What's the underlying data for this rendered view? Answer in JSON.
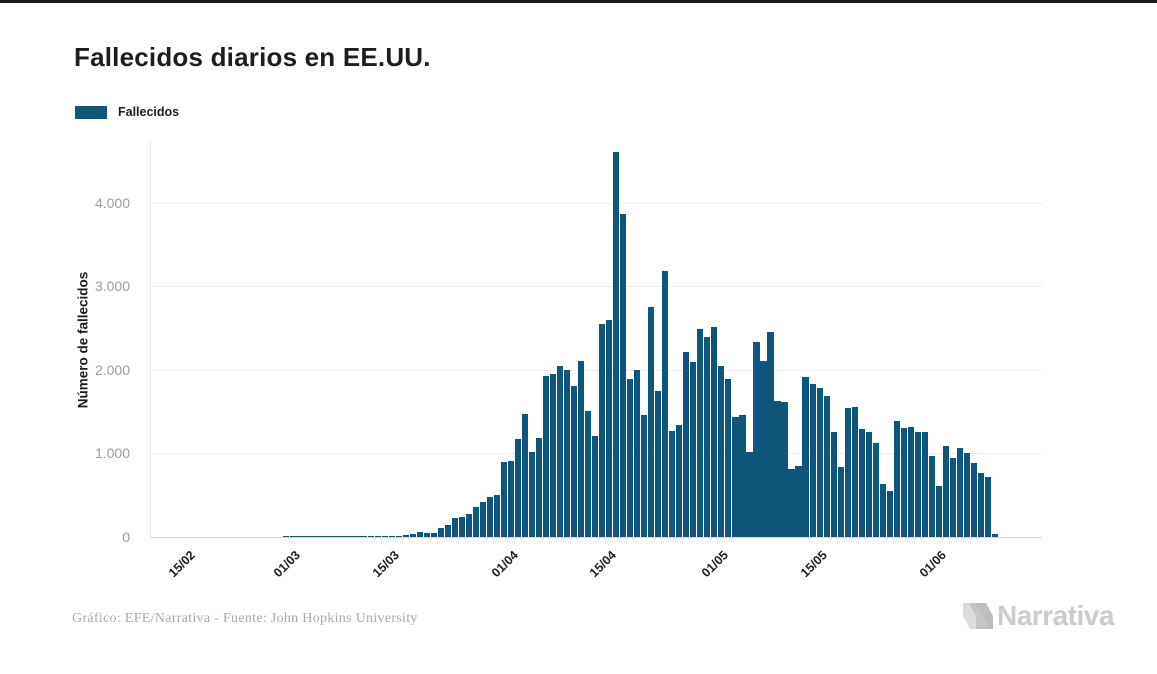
{
  "page": {
    "top_border_color": "#1b1b1b",
    "background": "#ffffff"
  },
  "title": "Fallecidos diarios en EE.UU.",
  "legend": {
    "label": "Fallecidos",
    "color": "#0f567c"
  },
  "y_axis": {
    "title": "Número de fallecidos",
    "ticks": [
      {
        "label": "0",
        "value": 0
      },
      {
        "label": "1.000",
        "value": 1000
      },
      {
        "label": "2.000",
        "value": 2000
      },
      {
        "label": "3.000",
        "value": 3000
      },
      {
        "label": "4.000",
        "value": 4000
      }
    ]
  },
  "x_axis": {
    "ticks": [
      {
        "label": "15/02",
        "index": 5
      },
      {
        "label": "01/03",
        "index": 20
      },
      {
        "label": "15/03",
        "index": 34
      },
      {
        "label": "01/04",
        "index": 51
      },
      {
        "label": "15/04",
        "index": 65
      },
      {
        "label": "01/05",
        "index": 81
      },
      {
        "label": "15/05",
        "index": 95
      },
      {
        "label": "01/06",
        "index": 112
      }
    ]
  },
  "footer": {
    "credit": "Gráfico: EFE/Narrativa - Fuente: John Hopkins University"
  },
  "logo": {
    "text": "Narrativa",
    "color": "#cbcbcb"
  },
  "chart_data": {
    "type": "bar",
    "title": "Fallecidos diarios en EE.UU.",
    "series_name": "Fallecidos",
    "bar_color": "#0f567c",
    "xlabel": "",
    "ylabel": "Número de fallecidos",
    "ylim": [
      0,
      4760
    ],
    "grid": "horizontal",
    "legend_position": "top-left",
    "x": [
      "10/02",
      "11/02",
      "12/02",
      "13/02",
      "14/02",
      "15/02",
      "16/02",
      "17/02",
      "18/02",
      "19/02",
      "20/02",
      "21/02",
      "22/02",
      "23/02",
      "24/02",
      "25/02",
      "26/02",
      "27/02",
      "28/02",
      "29/02",
      "01/03",
      "02/03",
      "03/03",
      "04/03",
      "05/03",
      "06/03",
      "07/03",
      "08/03",
      "09/03",
      "10/03",
      "11/03",
      "12/03",
      "13/03",
      "14/03",
      "15/03",
      "16/03",
      "17/03",
      "18/03",
      "19/03",
      "20/03",
      "21/03",
      "22/03",
      "23/03",
      "24/03",
      "25/03",
      "26/03",
      "27/03",
      "28/03",
      "29/03",
      "30/03",
      "31/03",
      "01/04",
      "02/04",
      "03/04",
      "04/04",
      "05/04",
      "06/04",
      "07/04",
      "08/04",
      "09/04",
      "10/04",
      "11/04",
      "12/04",
      "13/04",
      "14/04",
      "15/04",
      "16/04",
      "17/04",
      "18/04",
      "19/04",
      "20/04",
      "21/04",
      "22/04",
      "23/04",
      "24/04",
      "25/04",
      "26/04",
      "27/04",
      "28/04",
      "29/04",
      "30/04",
      "01/05",
      "02/05",
      "03/05",
      "04/05",
      "05/05",
      "06/05",
      "07/05",
      "08/05",
      "09/05",
      "10/05",
      "11/05",
      "12/05",
      "13/05",
      "14/05",
      "15/05",
      "16/05",
      "17/05",
      "18/05",
      "19/05",
      "20/05",
      "21/05",
      "22/05",
      "23/05",
      "24/05",
      "25/05",
      "26/05",
      "27/05",
      "28/05",
      "29/05",
      "30/05",
      "31/05",
      "01/06",
      "02/06",
      "03/06",
      "04/06",
      "05/06",
      "06/06",
      "07/06",
      "08/06",
      "09/06"
    ],
    "values": [
      0,
      0,
      0,
      0,
      0,
      0,
      0,
      0,
      0,
      0,
      0,
      0,
      0,
      0,
      0,
      0,
      0,
      0,
      0,
      1,
      1,
      5,
      1,
      4,
      1,
      3,
      2,
      4,
      4,
      6,
      8,
      3,
      10,
      8,
      11,
      18,
      26,
      42,
      56,
      49,
      46,
      111,
      140,
      225,
      240,
      275,
      358,
      418,
      478,
      502,
      895,
      905,
      1170,
      1470,
      1015,
      1190,
      1925,
      1950,
      2045,
      1995,
      1805,
      2105,
      1510,
      1205,
      2545,
      2595,
      4600,
      3860,
      1890,
      2000,
      1455,
      2750,
      1750,
      3180,
      1270,
      1340,
      2210,
      2090,
      2490,
      2390,
      2510,
      2040,
      1890,
      1430,
      1460,
      1015,
      2335,
      2105,
      2450,
      1630,
      1615,
      815,
      850,
      1910,
      1830,
      1780,
      1685,
      1260,
      835,
      1540,
      1560,
      1290,
      1260,
      1125,
      635,
      550,
      1390,
      1300,
      1315,
      1260,
      1255,
      965,
      610,
      1090,
      940,
      1060,
      1010,
      890,
      760,
      720,
      35
    ]
  }
}
